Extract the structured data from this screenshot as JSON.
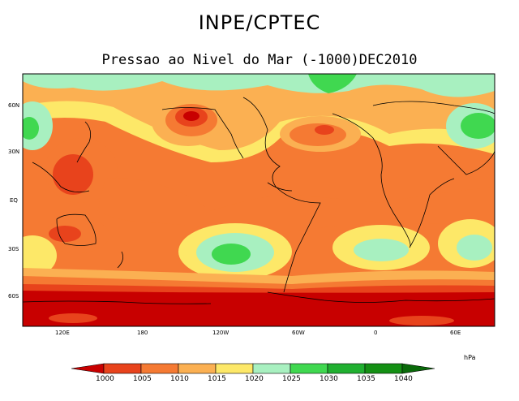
{
  "header": {
    "title": "INPE/CPTEC",
    "subtitle": "Pressao ao Nivel do Mar (-1000)DEC2010"
  },
  "map": {
    "lat_labels": [
      "60N",
      "30N",
      "EQ",
      "30S",
      "60S"
    ],
    "lon_labels": [
      "120E",
      "180",
      "120W",
      "60W",
      "0",
      "60E"
    ]
  },
  "colorbar": {
    "units": "hPa",
    "levels": [
      "1000",
      "1005",
      "1010",
      "1015",
      "1020",
      "1025",
      "1030",
      "1035",
      "1040"
    ],
    "colors": [
      "#c80000",
      "#e8431c",
      "#f57a33",
      "#fbb052",
      "#fde868",
      "#a8f0c0",
      "#40d850",
      "#20b030",
      "#149014",
      "#0a6a0a"
    ]
  }
}
